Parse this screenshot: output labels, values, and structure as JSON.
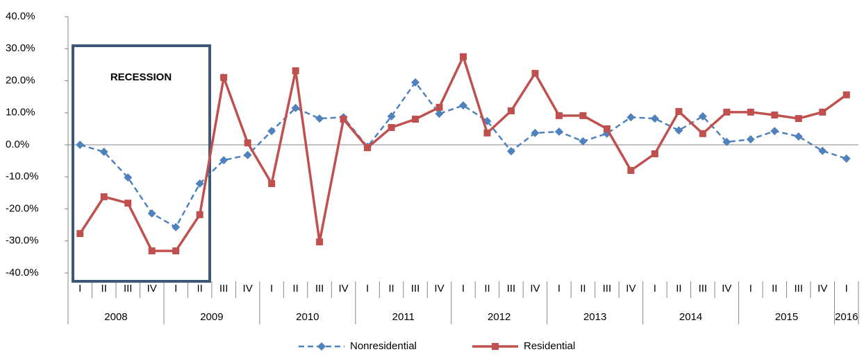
{
  "chart_data": {
    "type": "line",
    "categories": [
      "I",
      "II",
      "III",
      "IV",
      "I",
      "II",
      "III",
      "IV",
      "I",
      "II",
      "III",
      "IV",
      "I",
      "II",
      "III",
      "IV",
      "I",
      "II",
      "III",
      "IV",
      "I",
      "II",
      "III",
      "IV",
      "I",
      "II",
      "III",
      "IV",
      "I",
      "II",
      "III",
      "IV",
      "I"
    ],
    "years": [
      "2008",
      "2009",
      "2010",
      "2011",
      "2012",
      "2013",
      "2014",
      "2015",
      "2016"
    ],
    "series": [
      {
        "name": "Nonresidential",
        "color": "#4f81bd",
        "dashed": true,
        "marker": "diamond",
        "values": [
          0,
          -2.2,
          -10.2,
          -21.4,
          -25.7,
          -12.1,
          -4.8,
          -3.2,
          4.3,
          11.5,
          8.2,
          8.6,
          -0.6,
          8.9,
          19.5,
          9.7,
          12.3,
          7.4,
          -2.0,
          3.7,
          4.1,
          1.1,
          3.5,
          8.6,
          8.2,
          4.5,
          8.9,
          0.9,
          1.7,
          4.3,
          2.6,
          -1.9,
          -4.3
        ]
      },
      {
        "name": "Residential",
        "color": "#c0504d",
        "dashed": false,
        "marker": "square",
        "values": [
          -27.7,
          -16.2,
          -18.2,
          -33.1,
          -33.1,
          -21.8,
          21.0,
          0.6,
          -12.1,
          23.1,
          -30.3,
          8.0,
          -0.9,
          5.4,
          8.0,
          11.7,
          27.5,
          3.7,
          10.6,
          22.3,
          9.1,
          9.1,
          5.0,
          -8.0,
          -2.8,
          10.4,
          3.5,
          10.2,
          10.2,
          9.3,
          8.2,
          10.2,
          15.6
        ]
      }
    ],
    "ylim": [
      -40,
      40
    ],
    "yticks": [
      {
        "value": -40,
        "label": "-40.0%"
      },
      {
        "value": -30,
        "label": "-30.0%"
      },
      {
        "value": -20,
        "label": "-20.0%"
      },
      {
        "value": -10,
        "label": "-10.0%"
      },
      {
        "value": 0,
        "label": "0.0%"
      },
      {
        "value": 10,
        "label": "10.0%"
      },
      {
        "value": 20,
        "label": "20.0%"
      },
      {
        "value": 30,
        "label": "30.0%"
      },
      {
        "value": 40,
        "label": "40.0%"
      }
    ],
    "annotation": "RECESSION"
  }
}
